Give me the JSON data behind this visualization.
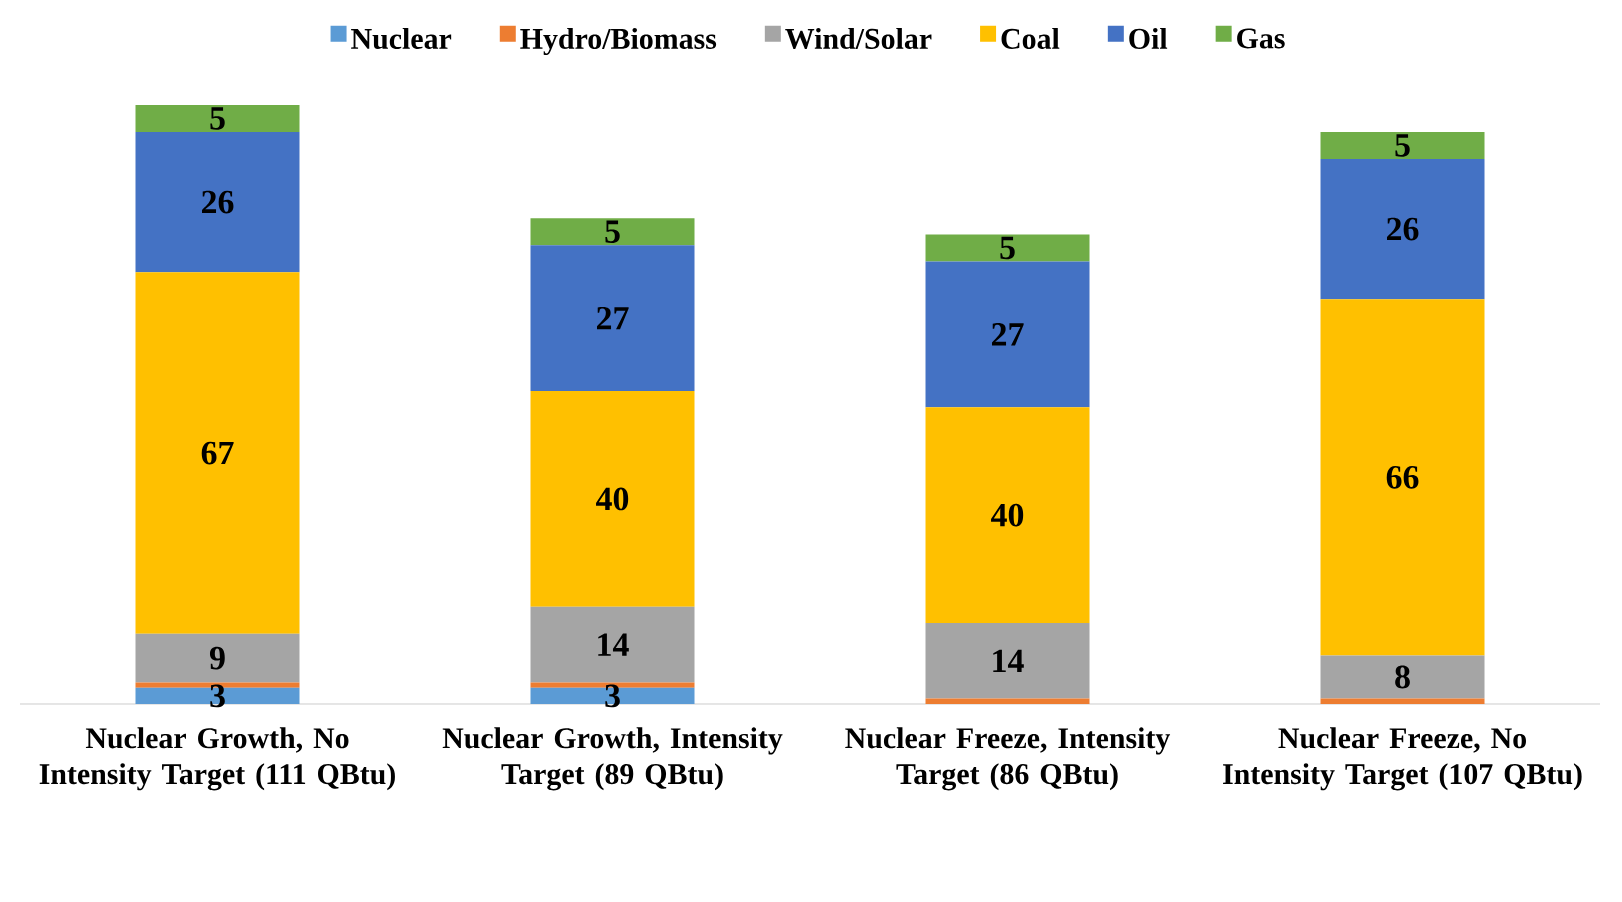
{
  "chart_data": {
    "type": "bar",
    "stacked": true,
    "legend": "top",
    "tick_labels": "x",
    "categories": [
      "Nuclear Growth, No Intensity Target (111 QBtu)",
      "Nuclear Growth, Intensity Target (89 QBtu)",
      "Nuclear Freeze, Intensity Target (86 QBtu)",
      "Nuclear Freeze, No Intensity Target (107 QBtu)"
    ],
    "series": [
      {
        "name": "Nuclear",
        "color": "#5b9bd5",
        "values": [
          3,
          3,
          0,
          0
        ],
        "value_labels": [
          "3",
          "3",
          null,
          null
        ]
      },
      {
        "name": "Hydro/Biomass",
        "color": "#ed7d31",
        "values": [
          1,
          1,
          1,
          1
        ],
        "value_labels": [
          null,
          null,
          null,
          null
        ]
      },
      {
        "name": "Wind/Solar",
        "color": "#a5a5a5",
        "values": [
          9,
          14,
          14,
          8
        ],
        "value_labels": [
          "9",
          "14",
          "14",
          "8"
        ]
      },
      {
        "name": "Coal",
        "color": "#ffc000",
        "values": [
          67,
          40,
          40,
          66
        ],
        "value_labels": [
          "67",
          "40",
          "40",
          "66"
        ]
      },
      {
        "name": "Oil",
        "color": "#4472c4",
        "values": [
          26,
          27,
          27,
          26
        ],
        "value_labels": [
          "26",
          "27",
          "27",
          "26"
        ]
      },
      {
        "name": "Gas",
        "color": "#70ad47",
        "values": [
          5,
          5,
          5,
          5
        ],
        "value_labels": [
          "5",
          "5",
          "5",
          "5"
        ]
      }
    ]
  }
}
